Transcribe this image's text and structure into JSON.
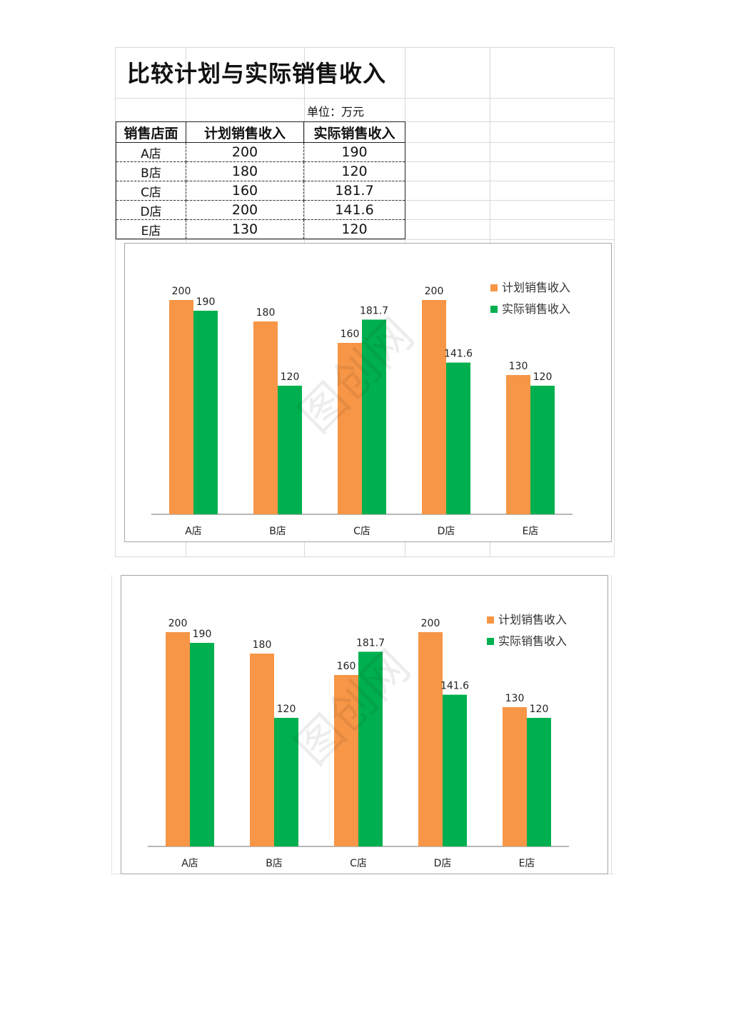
{
  "title": "比较计划与实际销售收入",
  "unit": "单位：万元",
  "table": {
    "headers": [
      "销售店面",
      "计划销售收入",
      "实际销售收入"
    ],
    "rows": [
      [
        "A店",
        "200",
        "190"
      ],
      [
        "B店",
        "180",
        "120"
      ],
      [
        "C店",
        "160",
        "181.7"
      ],
      [
        "D店",
        "200",
        "141.6"
      ],
      [
        "E店",
        "130",
        "120"
      ]
    ]
  },
  "colors": {
    "planned": "#F79646",
    "actual": "#00B050"
  },
  "watermark": "图创网",
  "chart_data": [
    {
      "type": "bar",
      "categories": [
        "A店",
        "B店",
        "C店",
        "D店",
        "E店"
      ],
      "series": [
        {
          "name": "计划销售收入",
          "values": [
            200,
            180,
            160,
            200,
            130
          ]
        },
        {
          "name": "实际销售收入",
          "values": [
            190,
            120,
            181.7,
            141.6,
            120
          ]
        }
      ],
      "ylim": [
        0,
        200
      ],
      "data_labels": true,
      "legend": "top-right",
      "grid": false
    },
    {
      "type": "bar",
      "categories": [
        "A店",
        "B店",
        "C店",
        "D店",
        "E店"
      ],
      "series": [
        {
          "name": "计划销售收入",
          "values": [
            200,
            180,
            160,
            200,
            130
          ]
        },
        {
          "name": "实际销售收入",
          "values": [
            190,
            120,
            181.7,
            141.6,
            120
          ]
        }
      ],
      "ylim": [
        0,
        200
      ],
      "data_labels": true,
      "legend": "top-right",
      "grid": false
    }
  ]
}
